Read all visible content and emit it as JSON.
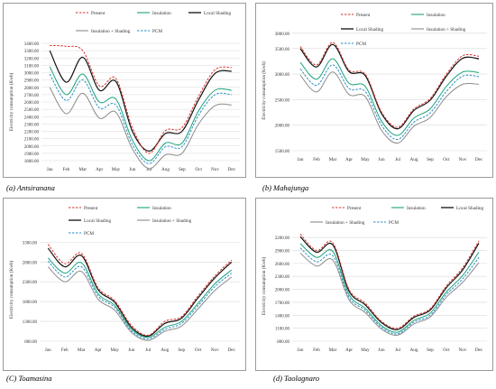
{
  "colors": {
    "present": "#d9322b",
    "insulation": "#1aa37a",
    "local_shading": "#111111",
    "insulation_shading": "#8c8c8c",
    "pcm": "#2b8ec9",
    "grid": "#d9d9d9",
    "frame": "#9a9a9a"
  },
  "captions": [
    {
      "letter": "(a)",
      "name": "Antsiranana"
    },
    {
      "letter": "(b)",
      "name": "Mahajunga"
    },
    {
      "letter": "(C)",
      "name": "Toamasina"
    },
    {
      "letter": "(d)",
      "name": "Taolagnaro"
    }
  ],
  "chart_data": [
    {
      "type": "line",
      "ylabel": "Electricity consumption (Kwh)",
      "categories": [
        "Jan",
        "Feb",
        "Mar",
        "Apr",
        "May",
        "Jun",
        "Jul",
        "Aug",
        "Sep",
        "Oct",
        "Nov",
        "Dec"
      ],
      "yticks": [
        "1800.00",
        "1900.00",
        "2000.00",
        "2100.00",
        "2200.00",
        "2300.00",
        "2400.00",
        "2500.00",
        "2600.00",
        "2700.00",
        "2800.00",
        "2900.00",
        "3000.00",
        "3100.00",
        "3200.00",
        "3300.00",
        "3400.00"
      ],
      "ylim": [
        1800,
        3400
      ],
      "legend": [
        "Present",
        "Insulation",
        "Local Shading",
        "Insulation + Shading",
        "PCM"
      ],
      "series": [
        {
          "name": "Present",
          "key": "present",
          "style": "dashed",
          "values": [
            3370,
            3360,
            3300,
            2820,
            2920,
            2250,
            1900,
            2210,
            2250,
            2680,
            3040,
            3070
          ]
        },
        {
          "name": "Insulation",
          "key": "insulation",
          "style": "solid",
          "values": [
            3080,
            2700,
            2980,
            2600,
            2640,
            2080,
            1800,
            2040,
            2040,
            2480,
            2760,
            2760
          ]
        },
        {
          "name": "Local Shading",
          "key": "local_shading",
          "style": "solid",
          "values": [
            3300,
            2870,
            3210,
            2760,
            2880,
            2200,
            1930,
            2170,
            2200,
            2630,
            2990,
            3020
          ]
        },
        {
          "name": "Insulation + Shading",
          "key": "insulation_shading",
          "style": "solid",
          "values": [
            2800,
            2440,
            2720,
            2380,
            2460,
            1960,
            1690,
            1880,
            1900,
            2300,
            2550,
            2560
          ]
        },
        {
          "name": "PCM",
          "key": "pcm",
          "style": "dashed",
          "values": [
            2980,
            2620,
            2900,
            2520,
            2560,
            2020,
            1760,
            1990,
            1990,
            2420,
            2700,
            2700
          ]
        }
      ]
    },
    {
      "type": "line",
      "ylabel": "Electricity consumption (Kwh)",
      "categories": [
        "Jan",
        "Feb",
        "Mar",
        "Apr",
        "May",
        "Jun",
        "Jul",
        "Aug",
        "Sep",
        "Oct",
        "Nov",
        "Dec"
      ],
      "yticks": [
        "1500.00",
        "2000.00",
        "2500.00",
        "3000.00",
        "3500.00",
        "3800.00"
      ],
      "ylim": [
        1500,
        3850
      ],
      "legend": [
        "Present",
        "Insulation",
        "Local Shading",
        "Insulation + Shading",
        "PCM"
      ],
      "series": [
        {
          "name": "Present",
          "key": "present",
          "style": "dashed",
          "values": [
            3540,
            3180,
            3620,
            3080,
            3000,
            2260,
            1960,
            2320,
            2520,
            3000,
            3360,
            3350
          ]
        },
        {
          "name": "Insulation",
          "key": "insulation",
          "style": "solid",
          "values": [
            3230,
            2900,
            3300,
            2820,
            2760,
            2080,
            1800,
            2140,
            2320,
            2760,
            3040,
            3030
          ]
        },
        {
          "name": "Local Shading",
          "key": "local_shading",
          "style": "solid",
          "values": [
            3500,
            3140,
            3580,
            3050,
            2970,
            2230,
            1930,
            2290,
            2490,
            2960,
            3310,
            3300
          ]
        },
        {
          "name": "Insulation + Shading",
          "key": "insulation_shading",
          "style": "solid",
          "values": [
            2980,
            2650,
            3040,
            2600,
            2560,
            1900,
            1650,
            1980,
            2150,
            2560,
            2800,
            2800
          ]
        },
        {
          "name": "PCM",
          "key": "pcm",
          "style": "dashed",
          "values": [
            3100,
            2780,
            3180,
            2720,
            2660,
            2000,
            1720,
            2060,
            2240,
            2660,
            2960,
            2950
          ]
        }
      ]
    },
    {
      "type": "line",
      "ylabel": "Electricity consumption (Kwh)",
      "categories": [
        "Jan",
        "Feb",
        "Mar",
        "Apr",
        "May",
        "Jun",
        "Jul",
        "Aug",
        "Sep",
        "Oct",
        "Nov",
        "Dec"
      ],
      "yticks": [
        "800.00",
        "1300.00",
        "1800.00",
        "2300.00",
        "2800.00",
        "3300.00"
      ],
      "ylim": [
        800,
        3400
      ],
      "legend": [
        "Present",
        "Insulation",
        "Local Shading",
        "Insulation + Shading",
        "PCM"
      ],
      "series": [
        {
          "name": "Present",
          "key": "present",
          "style": "dashed",
          "values": [
            3250,
            2760,
            3020,
            2150,
            1820,
            1200,
            950,
            1300,
            1420,
            1950,
            2450,
            2850
          ]
        },
        {
          "name": "Insulation",
          "key": "insulation",
          "style": "solid",
          "values": [
            2900,
            2520,
            2780,
            2000,
            1700,
            1100,
            900,
            1150,
            1300,
            1760,
            2250,
            2600
          ]
        },
        {
          "name": "Local Shading",
          "key": "local_shading",
          "style": "solid",
          "values": [
            3150,
            2680,
            2960,
            2100,
            1780,
            1150,
            930,
            1250,
            1380,
            1900,
            2400,
            2800
          ]
        },
        {
          "name": "Insulation + Shading",
          "key": "insulation_shading",
          "style": "solid",
          "values": [
            2680,
            2300,
            2560,
            1860,
            1580,
            1020,
            820,
            1050,
            1180,
            1620,
            2080,
            2420
          ]
        },
        {
          "name": "PCM",
          "key": "pcm",
          "style": "dashed",
          "values": [
            2820,
            2420,
            2680,
            1940,
            1650,
            1060,
            860,
            1100,
            1250,
            1700,
            2180,
            2520
          ]
        }
      ]
    },
    {
      "type": "line",
      "ylabel": "Electricity consumption (Kwh)",
      "categories": [
        "Jan",
        "Feb",
        "Mar",
        "Apr",
        "May",
        "Jun",
        "Jul",
        "Aug",
        "Sep",
        "Oct",
        "Nov",
        "Dec"
      ],
      "yticks": [
        "800.00",
        "1100.00",
        "1400.00",
        "1700.00",
        "2000.00",
        "2300.00",
        "2600.00",
        "2900.00",
        "3200.00"
      ],
      "ylim": [
        800,
        3350
      ],
      "legend": [
        "Present",
        "Insulation",
        "Local Shading",
        "Insulation + Shading",
        "PCM"
      ],
      "series": [
        {
          "name": "Present",
          "key": "present",
          "style": "dashed",
          "values": [
            3280,
            2900,
            3080,
            2000,
            1680,
            1260,
            1100,
            1380,
            1550,
            2080,
            2500,
            3120
          ]
        },
        {
          "name": "Insulation",
          "key": "insulation",
          "style": "solid",
          "values": [
            3060,
            2740,
            2880,
            1880,
            1560,
            1160,
            1010,
            1280,
            1450,
            1940,
            2320,
            2860
          ]
        },
        {
          "name": "Local Shading",
          "key": "local_shading",
          "style": "solid",
          "values": [
            3220,
            2860,
            3030,
            1960,
            1640,
            1230,
            1070,
            1350,
            1520,
            2040,
            2450,
            3070
          ]
        },
        {
          "name": "Insulation + Shading",
          "key": "insulation_shading",
          "style": "solid",
          "values": [
            2840,
            2540,
            2680,
            1760,
            1460,
            1080,
            940,
            1200,
            1360,
            1820,
            2160,
            2620
          ]
        },
        {
          "name": "PCM",
          "key": "pcm",
          "style": "dashed",
          "values": [
            2960,
            2640,
            2780,
            1820,
            1510,
            1120,
            970,
            1240,
            1400,
            1880,
            2240,
            2740
          ]
        }
      ]
    }
  ]
}
